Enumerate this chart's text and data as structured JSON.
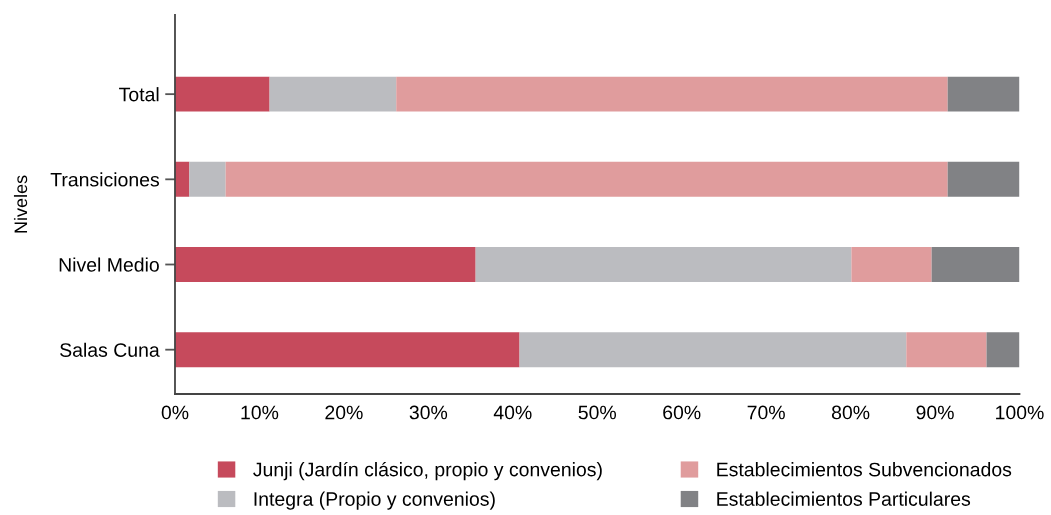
{
  "chart_data": {
    "type": "bar",
    "orientation": "horizontal",
    "stacked": true,
    "ylabel": "Niveles",
    "categories": [
      "Total",
      "Transiciones",
      "Nivel Medio",
      "Salas Cuna"
    ],
    "series": [
      {
        "name": "Junji (Jardín clásico, propio y convenios)",
        "color": "#c64a5c",
        "values": [
          11.2,
          1.7,
          35.6,
          40.8
        ]
      },
      {
        "name": "Integra (Propio y convenios)",
        "color": "#bbbcc0",
        "values": [
          15.0,
          4.3,
          44.5,
          45.8
        ]
      },
      {
        "name": "Establecimientos Subvencionados",
        "color": "#e09c9d",
        "values": [
          65.3,
          85.5,
          9.5,
          9.5
        ]
      },
      {
        "name": "Establecimientos Particulares",
        "color": "#818285",
        "values": [
          8.5,
          8.5,
          10.4,
          3.9
        ]
      }
    ],
    "xlim": [
      0,
      100
    ],
    "xticks": [
      {
        "value": 0,
        "label": "0%"
      },
      {
        "value": 10,
        "label": "10%"
      },
      {
        "value": 20,
        "label": "20%"
      },
      {
        "value": 30,
        "label": "30%"
      },
      {
        "value": 40,
        "label": "40%"
      },
      {
        "value": 50,
        "label": "50%"
      },
      {
        "value": 60,
        "label": "60%"
      },
      {
        "value": 70,
        "label": "70%"
      },
      {
        "value": 80,
        "label": "80%"
      },
      {
        "value": 90,
        "label": "90%"
      },
      {
        "value": 100,
        "label": "100%"
      }
    ],
    "legend": "bottom"
  }
}
